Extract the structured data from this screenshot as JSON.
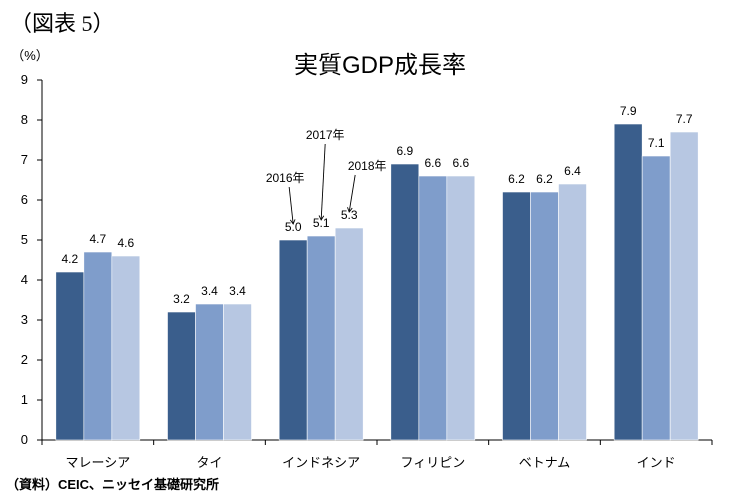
{
  "figure_label": "（図表 5）",
  "source_note": "（資料）CEIC、ニッセイ基礎研究所",
  "colors": {
    "series_2016": "#3a5e8c",
    "series_2017": "#7f9dcb",
    "series_2018": "#b7c7e2",
    "axis": "#000000"
  },
  "chart_data": {
    "type": "bar",
    "title": "実質GDP成長率",
    "ylabel": "（%）",
    "xlabel": "",
    "ylim": [
      0,
      9
    ],
    "yticks": [
      0,
      1,
      2,
      3,
      4,
      5,
      6,
      7,
      8,
      9
    ],
    "grid": false,
    "categories": [
      "マレーシア",
      "タイ",
      "インドネシア",
      "フィリピン",
      "ベトナム",
      "インド"
    ],
    "series": [
      {
        "name": "2016年",
        "values": [
          4.2,
          3.2,
          5.0,
          6.9,
          6.2,
          7.9
        ]
      },
      {
        "name": "2017年",
        "values": [
          4.7,
          3.4,
          5.1,
          6.6,
          6.2,
          7.1
        ]
      },
      {
        "name": "2018年",
        "values": [
          4.6,
          3.4,
          5.3,
          6.6,
          6.4,
          7.7
        ]
      }
    ],
    "data_labels": [
      [
        "4.2",
        "4.7",
        "4.6"
      ],
      [
        "3.2",
        "3.4",
        "3.4"
      ],
      [
        "5.0",
        "5.1",
        "5.3"
      ],
      [
        "6.9",
        "6.6",
        "6.6"
      ],
      [
        "6.2",
        "6.2",
        "6.4"
      ],
      [
        "7.9",
        "7.1",
        "7.7"
      ]
    ],
    "annotation_category": "インドネシア"
  }
}
